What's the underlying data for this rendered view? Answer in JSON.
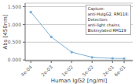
{
  "chart_data": {
    "type": "line",
    "x": [
      0.000390625,
      0.00195313,
      0.00976563,
      0.0488281,
      0.244141,
      0.610352
    ],
    "values": [
      1.35,
      0.65,
      0.22,
      0.075,
      0.045,
      0.04
    ],
    "color": "#7bafd4",
    "marker": "circle",
    "xlabel": "Human IgG2 [ng/ml]",
    "ylabel": "Abs [450nm]",
    "log": "x",
    "xlim": [
      0.00025,
      1.2
    ],
    "xticks": [
      {
        "value": 0.000390625,
        "label": "4e-04"
      },
      {
        "value": 0.00195313,
        "label": "2e-03"
      },
      {
        "value": 0.00976563,
        "label": "1e-02"
      },
      {
        "value": 0.0488281,
        "label": "5e-02"
      },
      {
        "value": 0.244141,
        "label": "2e-01"
      },
      {
        "value": 0.610352,
        "label": "6e-01"
      }
    ],
    "ylim": [
      -0.02,
      1.6
    ],
    "yticks": [
      {
        "value": 0,
        "label": "0.000"
      },
      {
        "value": 0.5,
        "label": "0.500"
      },
      {
        "value": 1,
        "label": "1.000"
      },
      {
        "value": 1.5,
        "label": "1.500"
      }
    ],
    "grid": "y",
    "annotation": "Capture:\nanti-HuIgG2, RM118;\nDetection:\nanti-light chains,\nBiotinylated RM129"
  }
}
